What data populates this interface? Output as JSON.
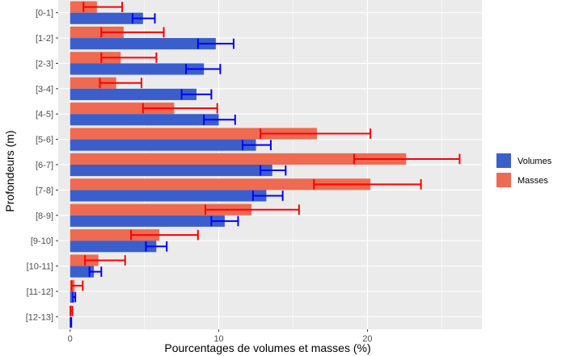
{
  "chart_data": {
    "type": "bar",
    "orientation": "horizontal",
    "xlabel": "Pourcentages de volumes et masses (%)",
    "ylabel": "Profondeurs (m)",
    "xlim": [
      -0.8,
      27.7
    ],
    "x_ticks": [
      0,
      10,
      20
    ],
    "grid": true,
    "legend_position": "right",
    "categories": [
      "[0-1]",
      "[1-2]",
      "[2-3]",
      "[3-4]",
      "[4-5]",
      "[5-6]",
      "[6-7]",
      "[7-8]",
      "[8-9]",
      "[9-10]",
      "[10-11]",
      "[11-12]",
      "[12-13]"
    ],
    "series": [
      {
        "name": "Volumes",
        "color": "#3a5fcd",
        "error_color": "#0000ff",
        "values": [
          4.9,
          9.8,
          9.0,
          8.5,
          10.0,
          12.5,
          13.6,
          13.2,
          10.4,
          5.8,
          1.6,
          0.25,
          0.05
        ],
        "err_low": [
          4.2,
          8.6,
          7.8,
          7.5,
          9.0,
          11.6,
          12.8,
          12.3,
          9.5,
          5.1,
          1.3,
          0.2,
          0.03
        ],
        "err_high": [
          5.7,
          11.0,
          10.1,
          9.5,
          11.1,
          13.5,
          14.5,
          14.3,
          11.3,
          6.5,
          2.1,
          0.35,
          0.08
        ]
      },
      {
        "name": "Masses",
        "color": "#ee6a50",
        "error_color": "#ff0000",
        "values": [
          1.8,
          3.6,
          3.4,
          3.1,
          7.0,
          16.6,
          22.6,
          20.2,
          12.2,
          6.0,
          1.9,
          0.3,
          0.08
        ],
        "err_low": [
          0.9,
          2.1,
          2.1,
          2.0,
          4.9,
          12.8,
          19.1,
          16.4,
          9.1,
          4.1,
          1.0,
          0.1,
          0.02
        ],
        "err_high": [
          3.5,
          6.3,
          5.8,
          4.8,
          9.9,
          20.2,
          26.2,
          23.6,
          15.4,
          8.6,
          3.7,
          0.85,
          0.15
        ]
      }
    ]
  }
}
